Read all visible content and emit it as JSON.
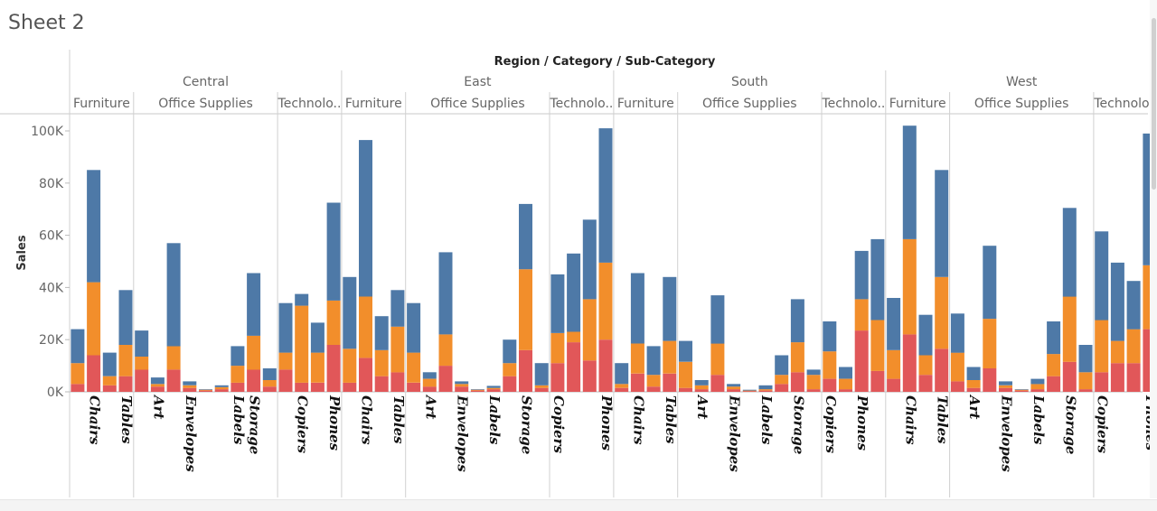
{
  "page": {
    "title": "Sheet 2"
  },
  "chart_data": {
    "type": "bar",
    "stacked": true,
    "header": "Region / Category / Sub-Category",
    "ylabel": "Sales",
    "ylim": [
      0,
      100000
    ],
    "yticks": [
      {
        "value": 0,
        "label": "0K"
      },
      {
        "value": 20000,
        "label": "20K"
      },
      {
        "value": 40000,
        "label": "40K"
      },
      {
        "value": 60000,
        "label": "60K"
      },
      {
        "value": 80000,
        "label": "80K"
      },
      {
        "value": 100000,
        "label": "100K"
      }
    ],
    "segment_colors": [
      "#e15759",
      "#f28e2b",
      "#4e79a7"
    ],
    "regions": [
      {
        "name": "Central",
        "categories": [
          {
            "name": "Furniture",
            "bars": [
              {
                "v": [
                  3000,
                  8000,
                  13000
                ]
              },
              {
                "v": [
                  14000,
                  28000,
                  43000
                ],
                "label": "Chairs"
              },
              {
                "v": [
                  2500,
                  3500,
                  9000
                ]
              },
              {
                "v": [
                  6000,
                  12000,
                  21000
                ],
                "label": "Tables"
              }
            ]
          },
          {
            "name": "Office Supplies",
            "bars": [
              {
                "v": [
                  8500,
                  5000,
                  10000
                ]
              },
              {
                "v": [
                  2000,
                  1000,
                  2500
                ],
                "label": "Art"
              },
              {
                "v": [
                  8500,
                  9000,
                  39500
                ]
              },
              {
                "v": [
                  1500,
                  1000,
                  1500
                ],
                "label": "Envelopes"
              },
              {
                "v": [
                  500,
                  300,
                  200
                ]
              },
              {
                "v": [
                  1000,
                  800,
                  700
                ]
              },
              {
                "v": [
                  3500,
                  6500,
                  7500
                ],
                "label": "Labels"
              },
              {
                "v": [
                  8500,
                  13000,
                  24000
                ],
                "label": "Storage"
              },
              {
                "v": [
                  2000,
                  2500,
                  4500
                ]
              }
            ]
          },
          {
            "name": "Technolo..",
            "bars": [
              {
                "v": [
                  8500,
                  6500,
                  19000
                ]
              },
              {
                "v": [
                  3500,
                  29500,
                  4500
                ],
                "label": "Copiers"
              },
              {
                "v": [
                  3500,
                  11500,
                  11500
                ]
              },
              {
                "v": [
                  18000,
                  17000,
                  37500
                ],
                "label": "Phones"
              }
            ]
          }
        ]
      },
      {
        "name": "East",
        "categories": [
          {
            "name": "Furniture",
            "bars": [
              {
                "v": [
                  3500,
                  13000,
                  27500
                ]
              },
              {
                "v": [
                  13000,
                  23500,
                  60000
                ],
                "label": "Chairs"
              },
              {
                "v": [
                  6000,
                  10000,
                  13000
                ]
              },
              {
                "v": [
                  7500,
                  17500,
                  14000
                ],
                "label": "Tables"
              }
            ]
          },
          {
            "name": "Office Supplies",
            "bars": [
              {
                "v": [
                  3500,
                  11500,
                  19000
                ]
              },
              {
                "v": [
                  2000,
                  3000,
                  2500
                ],
                "label": "Art"
              },
              {
                "v": [
                  10000,
                  12000,
                  31500
                ]
              },
              {
                "v": [
                  2000,
                  1000,
                  1000
                ],
                "label": "Envelopes"
              },
              {
                "v": [
                  500,
                  300,
                  200
                ]
              },
              {
                "v": [
                  1000,
                  500,
                  800
                ],
                "label": "Labels"
              },
              {
                "v": [
                  6000,
                  5000,
                  9000
                ]
              },
              {
                "v": [
                  16000,
                  31000,
                  25000
                ],
                "label": "Storage"
              },
              {
                "v": [
                  1500,
                  1000,
                  8500
                ]
              }
            ]
          },
          {
            "name": "Technolo..",
            "bars": [
              {
                "v": [
                  11000,
                  11500,
                  22500
                ],
                "label": "Copiers"
              },
              {
                "v": [
                  19000,
                  4000,
                  30000
                ]
              },
              {
                "v": [
                  12000,
                  23500,
                  30500
                ]
              },
              {
                "v": [
                  20000,
                  29500,
                  51500
                ],
                "label": "Phones"
              }
            ]
          }
        ]
      },
      {
        "name": "South",
        "categories": [
          {
            "name": "Furniture",
            "bars": [
              {
                "v": [
                  1500,
                  1500,
                  8000
                ]
              },
              {
                "v": [
                  7000,
                  11500,
                  27000
                ],
                "label": "Chairs"
              },
              {
                "v": [
                  2000,
                  4500,
                  11000
                ]
              },
              {
                "v": [
                  7000,
                  12500,
                  24500
                ],
                "label": "Tables"
              }
            ]
          },
          {
            "name": "Office Supplies",
            "bars": [
              {
                "v": [
                  1500,
                  10000,
                  8000
                ]
              },
              {
                "v": [
                  1000,
                  1500,
                  2000
                ],
                "label": "Art"
              },
              {
                "v": [
                  6500,
                  12000,
                  18500
                ]
              },
              {
                "v": [
                  1000,
                  1000,
                  1000
                ],
                "label": "Envelopes"
              },
              {
                "v": [
                  300,
                  200,
                  300
                ]
              },
              {
                "v": [
                  500,
                  500,
                  1500
                ],
                "label": "Labels"
              },
              {
                "v": [
                  3000,
                  3500,
                  7500
                ]
              },
              {
                "v": [
                  7500,
                  11500,
                  16500
                ],
                "label": "Storage"
              },
              {
                "v": [
                  1000,
                  5500,
                  2000
                ]
              }
            ]
          },
          {
            "name": "Technolo..",
            "bars": [
              {
                "v": [
                  5000,
                  10500,
                  11500
                ],
                "label": "Copiers"
              },
              {
                "v": [
                  1000,
                  4000,
                  4500
                ]
              },
              {
                "v": [
                  23500,
                  12000,
                  18500
                ],
                "label": "Phones"
              },
              {
                "v": [
                  8000,
                  19500,
                  31000
                ]
              }
            ]
          }
        ]
      },
      {
        "name": "West",
        "categories": [
          {
            "name": "Furniture",
            "bars": [
              {
                "v": [
                  5000,
                  11000,
                  20000
                ]
              },
              {
                "v": [
                  22000,
                  36500,
                  43500
                ],
                "label": "Chairs"
              },
              {
                "v": [
                  6500,
                  7500,
                  15500
                ]
              },
              {
                "v": [
                  16500,
                  27500,
                  41000
                ],
                "label": "Tables"
              }
            ]
          },
          {
            "name": "Office Supplies",
            "bars": [
              {
                "v": [
                  4000,
                  11000,
                  15000
                ]
              },
              {
                "v": [
                  1500,
                  3000,
                  5000
                ],
                "label": "Art"
              },
              {
                "v": [
                  9000,
                  19000,
                  28000
                ]
              },
              {
                "v": [
                  1500,
                  1000,
                  1500
                ],
                "label": "Envelopes"
              },
              {
                "v": [
                  500,
                  300,
                  200
                ]
              },
              {
                "v": [
                  1000,
                  2000,
                  2000
                ],
                "label": "Labels"
              },
              {
                "v": [
                  6000,
                  8500,
                  12500
                ]
              },
              {
                "v": [
                  11500,
                  25000,
                  34000
                ],
                "label": "Storage"
              },
              {
                "v": [
                  1000,
                  6500,
                  10500
                ]
              }
            ]
          },
          {
            "name": "Technolo..",
            "bars": [
              {
                "v": [
                  7500,
                  20000,
                  34000
                ],
                "label": "Copiers"
              },
              {
                "v": [
                  11000,
                  8500,
                  30000
                ]
              },
              {
                "v": [
                  11000,
                  13000,
                  18500
                ]
              },
              {
                "v": [
                  24000,
                  24500,
                  50500
                ],
                "label": "Phones"
              }
            ]
          }
        ]
      }
    ]
  }
}
